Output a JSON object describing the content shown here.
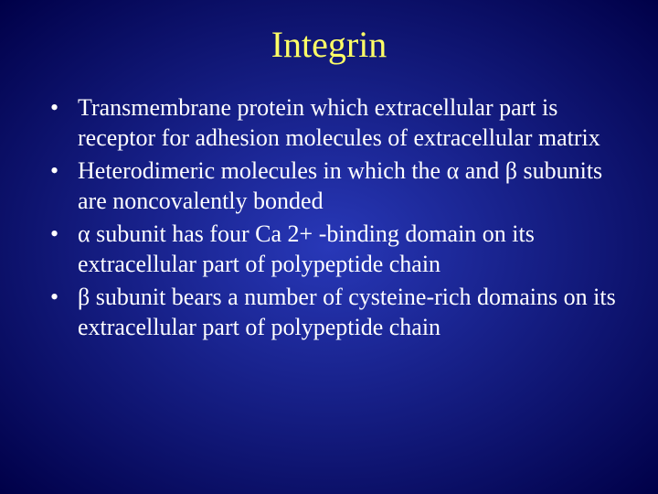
{
  "slide": {
    "background_gradient": {
      "type": "radial",
      "inner_color": "#2838b8",
      "outer_color": "#000048"
    },
    "title": {
      "text": "Integrin",
      "color": "#ffff66",
      "fontsize": 40,
      "font_family": "Times New Roman"
    },
    "body": {
      "text_color": "#ffffff",
      "fontsize": 26,
      "font_family": "Times New Roman",
      "bullets": [
        "Transmembrane protein which extracellular part is receptor for adhesion molecules of extracellular matrix",
        "Heterodimeric molecules in which the α and β subunits are noncovalently bonded",
        "α subunit has  four Ca 2+ -binding domain on its extracellular part of polypeptide chain",
        "β subunit bears a number of cysteine-rich domains on its extracellular part of polypeptide chain"
      ]
    }
  }
}
